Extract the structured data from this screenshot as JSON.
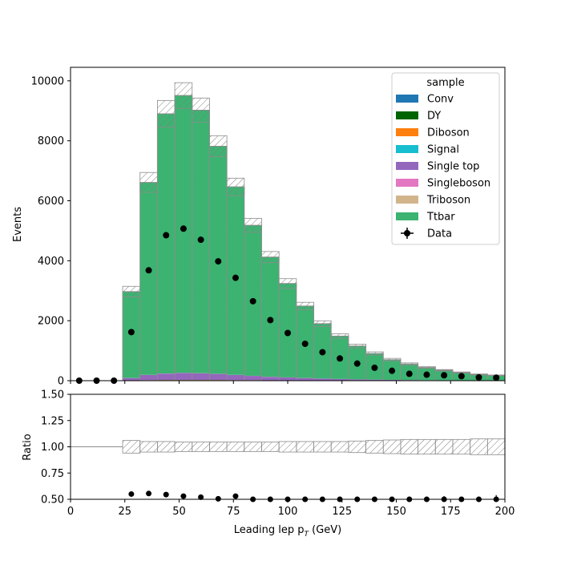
{
  "chart_data": [
    {
      "type": "bar",
      "stacked": true,
      "panel": "main",
      "ylabel": "Events",
      "xlim": [
        0,
        200
      ],
      "ylim": [
        0,
        10450
      ],
      "yticks": [
        0,
        2000,
        4000,
        6000,
        8000,
        10000
      ],
      "bin_edges": [
        0,
        8,
        16,
        24,
        32,
        40,
        48,
        56,
        64,
        72,
        80,
        88,
        96,
        104,
        112,
        120,
        128,
        136,
        144,
        152,
        160,
        168,
        176,
        184,
        192,
        200
      ],
      "series": [
        {
          "name": "Conv",
          "color": "#1f77b4",
          "values": [
            0,
            0,
            0,
            0,
            0,
            0,
            0,
            0,
            0,
            0,
            0,
            0,
            0,
            0,
            0,
            0,
            0,
            0,
            0,
            0,
            0,
            0,
            0,
            0,
            0
          ]
        },
        {
          "name": "DY",
          "color": "#006400",
          "values": [
            0,
            0,
            0,
            5,
            15,
            20,
            20,
            20,
            20,
            15,
            15,
            10,
            10,
            10,
            8,
            6,
            5,
            4,
            3,
            3,
            2,
            2,
            1,
            1,
            1
          ]
        },
        {
          "name": "Diboson",
          "color": "#ff7f0e",
          "values": [
            0,
            0,
            0,
            2,
            4,
            5,
            5,
            5,
            5,
            4,
            4,
            3,
            3,
            2,
            2,
            2,
            1,
            1,
            1,
            1,
            1,
            1,
            1,
            0,
            0
          ]
        },
        {
          "name": "Signal",
          "color": "#17becf",
          "values": [
            0,
            0,
            0,
            0,
            0,
            0,
            0,
            0,
            0,
            0,
            0,
            0,
            0,
            0,
            0,
            0,
            0,
            0,
            0,
            0,
            0,
            0,
            0,
            0,
            0
          ]
        },
        {
          "name": "Single top",
          "color": "#9467bd",
          "values": [
            0,
            0,
            0,
            80,
            170,
            210,
            230,
            220,
            200,
            170,
            140,
            115,
            95,
            75,
            60,
            48,
            38,
            30,
            24,
            19,
            15,
            12,
            9,
            7,
            6
          ]
        },
        {
          "name": "Singleboson",
          "color": "#e377c2",
          "values": [
            0,
            0,
            0,
            2,
            4,
            5,
            5,
            5,
            4,
            4,
            3,
            3,
            2,
            2,
            2,
            1,
            1,
            1,
            1,
            1,
            1,
            1,
            0,
            0,
            0
          ]
        },
        {
          "name": "Triboson",
          "color": "#d2b48c",
          "values": [
            0,
            0,
            0,
            0,
            0,
            0,
            0,
            0,
            0,
            0,
            0,
            0,
            0,
            0,
            0,
            0,
            0,
            0,
            0,
            0,
            0,
            0,
            0,
            0,
            0
          ]
        },
        {
          "name": "Ttbar",
          "color": "#3cb371",
          "values": [
            0,
            0,
            0,
            2880,
            6420,
            8660,
            9250,
            8770,
            7590,
            6270,
            5020,
            3990,
            3130,
            2400,
            1830,
            1430,
            1110,
            870,
            670,
            530,
            420,
            330,
            260,
            200,
            170
          ]
        }
      ],
      "uncertainty_frac": [
        0,
        0,
        0,
        0.06,
        0.05,
        0.05,
        0.045,
        0.045,
        0.045,
        0.045,
        0.045,
        0.045,
        0.05,
        0.05,
        0.05,
        0.05,
        0.055,
        0.06,
        0.065,
        0.07,
        0.07,
        0.07,
        0.07,
        0.075,
        0.075
      ],
      "data_x": [
        4,
        12,
        20,
        28,
        36,
        44,
        52,
        60,
        68,
        76,
        84,
        92,
        100,
        108,
        116,
        124,
        132,
        140,
        148,
        156,
        164,
        172,
        180,
        188,
        196
      ],
      "data_y": [
        0,
        0,
        0,
        1620,
        3680,
        4850,
        5070,
        4700,
        3980,
        3430,
        2650,
        2020,
        1590,
        1230,
        950,
        740,
        570,
        430,
        330,
        230,
        200,
        180,
        150,
        110,
        100
      ],
      "legend": {
        "title": "sample",
        "placement": "upper-right",
        "data_label": "Data"
      }
    },
    {
      "type": "scatter",
      "panel": "ratio",
      "xlabel": "Leading lep p",
      "xlabel_sub": "T",
      "xlabel_unit": " (GeV)",
      "ylabel": "Ratio",
      "xlim": [
        0,
        200
      ],
      "ylim": [
        0.5,
        1.5
      ],
      "xticks": [
        0,
        25,
        50,
        75,
        100,
        125,
        150,
        175,
        200
      ],
      "yticks": [
        0.5,
        0.75,
        1.0,
        1.25,
        1.5
      ],
      "ytick_labels": [
        "0.50",
        "0.75",
        "1.00",
        "1.25",
        "1.50"
      ],
      "x": [
        28,
        36,
        44,
        52,
        60,
        68,
        76,
        84,
        92,
        100,
        108,
        116,
        124,
        132,
        140,
        148,
        156,
        164,
        172,
        180,
        188,
        196
      ],
      "y": [
        0.55,
        0.555,
        0.545,
        0.53,
        0.52,
        0.505,
        0.53,
        0.5,
        0.49,
        0.495,
        0.49,
        0.49,
        0.495,
        0.495,
        0.49,
        0.49,
        0.49,
        0.49,
        0.5,
        0.49,
        0.47,
        0.5
      ],
      "band_lo": [
        1,
        1,
        1,
        0.94,
        0.95,
        0.95,
        0.955,
        0.955,
        0.955,
        0.955,
        0.955,
        0.955,
        0.95,
        0.95,
        0.95,
        0.95,
        0.945,
        0.94,
        0.935,
        0.93,
        0.93,
        0.93,
        0.93,
        0.925,
        0.925
      ],
      "band_hi": [
        1,
        1,
        1,
        1.06,
        1.05,
        1.05,
        1.045,
        1.045,
        1.045,
        1.045,
        1.045,
        1.045,
        1.05,
        1.05,
        1.05,
        1.05,
        1.055,
        1.06,
        1.065,
        1.07,
        1.07,
        1.07,
        1.07,
        1.075,
        1.075
      ]
    }
  ]
}
